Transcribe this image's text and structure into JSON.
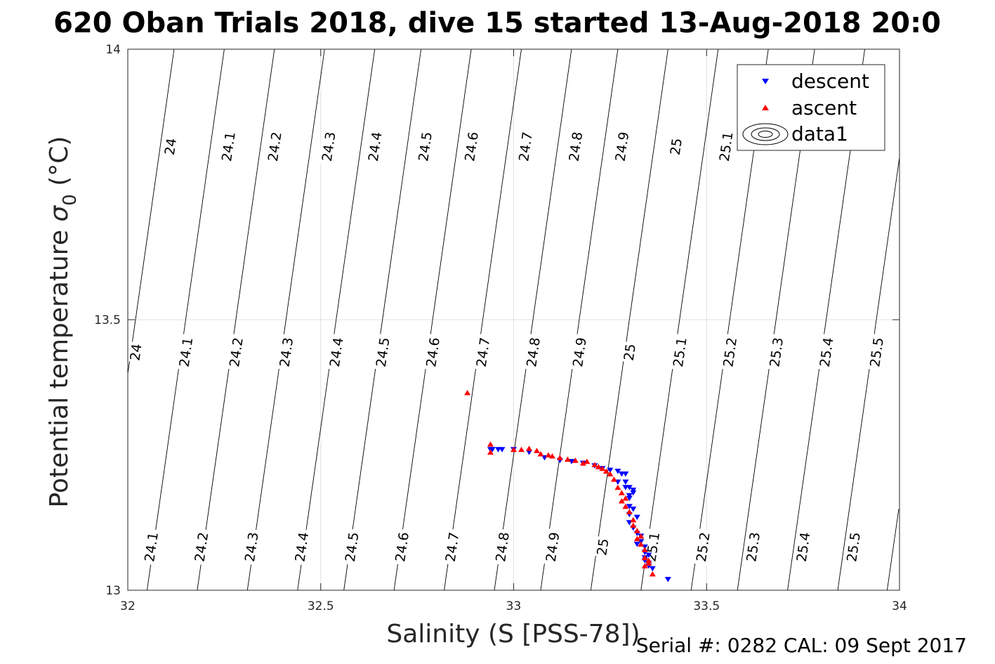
{
  "chart_data": {
    "type": "scatter",
    "title": "620 Oban Trials 2018, dive 15 started 13-Aug-2018 20:0",
    "xlabel": "Salinity (S [PSS-78])",
    "ylabel_main": "Potential temperature ",
    "ylabel_symbol": "σ",
    "ylabel_sub": "0",
    "ylabel_unit": " (°C)",
    "xlim": [
      32,
      34
    ],
    "ylim": [
      13,
      14
    ],
    "xticks": [
      32,
      32.5,
      33,
      33.5,
      34
    ],
    "xtick_labels": [
      "32",
      "32.5",
      "33",
      "33.5",
      "34"
    ],
    "yticks": [
      13,
      13.5,
      14
    ],
    "ytick_labels": [
      "13",
      "13.5",
      "14"
    ],
    "grid": true,
    "legend_position": "top-right",
    "legend": [
      "descent",
      "ascent",
      "data1"
    ],
    "footer": "Serial #: 0282  CAL: 09 Sept 2017",
    "colors": {
      "descent": "#0000ff",
      "ascent": "#ff0000",
      "contour": "#000000",
      "grid": "#e0e0e0"
    },
    "density_contours": {
      "bottom_labels": [
        "24.1",
        "24.2",
        "24.3",
        "24.4",
        "24.5",
        "24.6",
        "24.7",
        "24.8",
        "24.9",
        "25",
        "25.1",
        "25.2",
        "25.3",
        "25.4",
        "25.5"
      ],
      "bottom_anchor_salinity": [
        32.06,
        32.19,
        32.32,
        32.45,
        32.58,
        32.71,
        32.84,
        32.97,
        33.1,
        33.23,
        33.36,
        33.49,
        33.62,
        33.75,
        33.88
      ],
      "middle_labels": [
        "24",
        "24.1",
        "24.2",
        "24.3",
        "24.4",
        "24.5",
        "24.6",
        "24.7",
        "24.8",
        "24.9",
        "25",
        "25.1",
        "25.2",
        "25.3",
        "25.4",
        "25.5"
      ],
      "middle_anchor_salinity": [
        32.02,
        32.15,
        32.28,
        32.41,
        32.54,
        32.66,
        32.79,
        32.92,
        33.05,
        33.17,
        33.3,
        33.43,
        33.56,
        33.68,
        33.81,
        33.94
      ],
      "top_labels": [
        "24",
        "24.1",
        "24.2",
        "24.3",
        "24.4",
        "24.5",
        "24.6",
        "24.7",
        "24.8",
        "24.9",
        "25",
        "25.1"
      ],
      "top_anchor_salinity": [
        32.11,
        32.26,
        32.38,
        32.52,
        32.64,
        32.77,
        32.89,
        33.03,
        33.16,
        33.28,
        33.42,
        33.55
      ],
      "slope_salinity_per_degC": 0.2
    },
    "series": [
      {
        "name": "descent",
        "marker": "down-triangle",
        "points": [
          [
            32.94,
            13.26
          ],
          [
            32.945,
            13.26
          ],
          [
            32.96,
            13.26
          ],
          [
            32.97,
            13.26
          ],
          [
            33.0,
            13.26
          ],
          [
            33.04,
            13.255
          ],
          [
            33.08,
            13.245
          ],
          [
            33.12,
            13.24
          ],
          [
            33.15,
            13.238
          ],
          [
            33.18,
            13.235
          ],
          [
            33.21,
            13.23
          ],
          [
            33.23,
            13.225
          ],
          [
            33.25,
            13.222
          ],
          [
            33.27,
            13.22
          ],
          [
            33.28,
            13.215
          ],
          [
            33.29,
            13.215
          ],
          [
            33.27,
            13.2
          ],
          [
            33.29,
            13.2
          ],
          [
            33.29,
            13.19
          ],
          [
            33.3,
            13.19
          ],
          [
            33.31,
            13.185
          ],
          [
            33.3,
            13.175
          ],
          [
            33.31,
            13.18
          ],
          [
            33.3,
            13.17
          ],
          [
            33.3,
            13.155
          ],
          [
            33.31,
            13.15
          ],
          [
            33.3,
            13.14
          ],
          [
            33.32,
            13.135
          ],
          [
            33.3,
            13.125
          ],
          [
            33.31,
            13.115
          ],
          [
            33.32,
            13.105
          ],
          [
            33.33,
            13.1
          ],
          [
            33.32,
            13.085
          ],
          [
            33.33,
            13.09
          ],
          [
            33.34,
            13.08
          ],
          [
            33.34,
            13.07
          ],
          [
            33.35,
            13.065
          ],
          [
            33.34,
            13.055
          ],
          [
            33.35,
            13.05
          ],
          [
            33.35,
            13.045
          ],
          [
            33.34,
            13.06
          ],
          [
            33.36,
            13.04
          ],
          [
            33.4,
            13.02
          ]
        ]
      },
      {
        "name": "ascent",
        "marker": "up-triangle",
        "points": [
          [
            32.88,
            13.365
          ],
          [
            32.94,
            13.27
          ],
          [
            32.94,
            13.255
          ],
          [
            33.0,
            13.26
          ],
          [
            33.02,
            13.26
          ],
          [
            33.04,
            13.262
          ],
          [
            33.06,
            13.258
          ],
          [
            33.07,
            13.252
          ],
          [
            33.09,
            13.25
          ],
          [
            33.1,
            13.248
          ],
          [
            33.12,
            13.245
          ],
          [
            33.14,
            13.242
          ],
          [
            33.16,
            13.24
          ],
          [
            33.18,
            13.235
          ],
          [
            33.19,
            13.238
          ],
          [
            33.21,
            13.232
          ],
          [
            33.22,
            13.228
          ],
          [
            33.23,
            13.225
          ],
          [
            33.24,
            13.22
          ],
          [
            33.25,
            13.215
          ],
          [
            33.26,
            13.205
          ],
          [
            33.27,
            13.19
          ],
          [
            33.28,
            13.18
          ],
          [
            33.29,
            13.17
          ],
          [
            33.28,
            13.165
          ],
          [
            33.29,
            13.155
          ],
          [
            33.3,
            13.145
          ],
          [
            33.31,
            13.13
          ],
          [
            33.31,
            13.12
          ],
          [
            33.32,
            13.11
          ],
          [
            33.33,
            13.1
          ],
          [
            33.32,
            13.095
          ],
          [
            33.33,
            13.085
          ],
          [
            33.34,
            13.075
          ],
          [
            33.34,
            13.06
          ],
          [
            33.35,
            13.05
          ],
          [
            33.34,
            13.045
          ],
          [
            33.35,
            13.055
          ],
          [
            33.36,
            13.03
          ]
        ]
      }
    ]
  }
}
